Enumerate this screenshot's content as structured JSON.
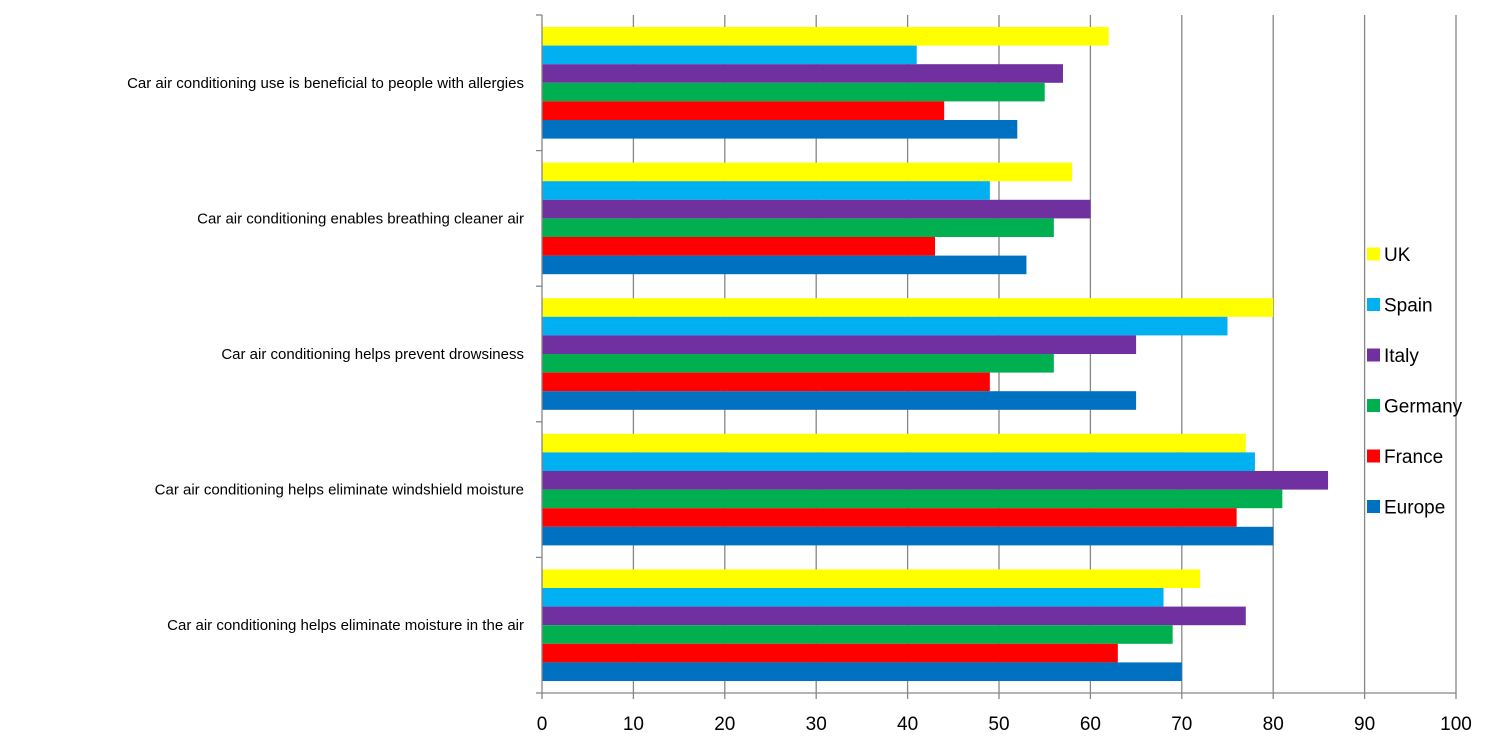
{
  "chart_data": {
    "type": "bar",
    "orientation": "horizontal",
    "title": "",
    "xlabel": "",
    "ylabel": "",
    "xlim": [
      0,
      100
    ],
    "x_ticks": [
      0,
      10,
      20,
      30,
      40,
      50,
      60,
      70,
      80,
      90,
      100
    ],
    "grid": "vertical major gridlines",
    "legend_position": "right",
    "categories": [
      "Car air conditioning use is beneficial to people with allergies",
      "Car air conditioning enables breathing cleaner air",
      "Car air conditioning helps prevent drowsiness",
      "Car air conditioning helps eliminate windshield moisture",
      "Car air conditioning helps eliminate moisture in the air"
    ],
    "series": [
      {
        "name": "UK",
        "color": "#FFFF00",
        "values": [
          62,
          58,
          80,
          77,
          72
        ]
      },
      {
        "name": "Spain",
        "color": "#00B0F0",
        "values": [
          41,
          49,
          75,
          78,
          68
        ]
      },
      {
        "name": "Italy",
        "color": "#7030A0",
        "values": [
          57,
          60,
          65,
          86,
          77
        ]
      },
      {
        "name": "Germany",
        "color": "#00B050",
        "values": [
          55,
          56,
          56,
          81,
          69
        ]
      },
      {
        "name": "France",
        "color": "#FF0000",
        "values": [
          44,
          43,
          49,
          76,
          63
        ]
      },
      {
        "name": "Europe",
        "color": "#0070C0",
        "values": [
          52,
          53,
          65,
          80,
          70
        ]
      }
    ]
  }
}
